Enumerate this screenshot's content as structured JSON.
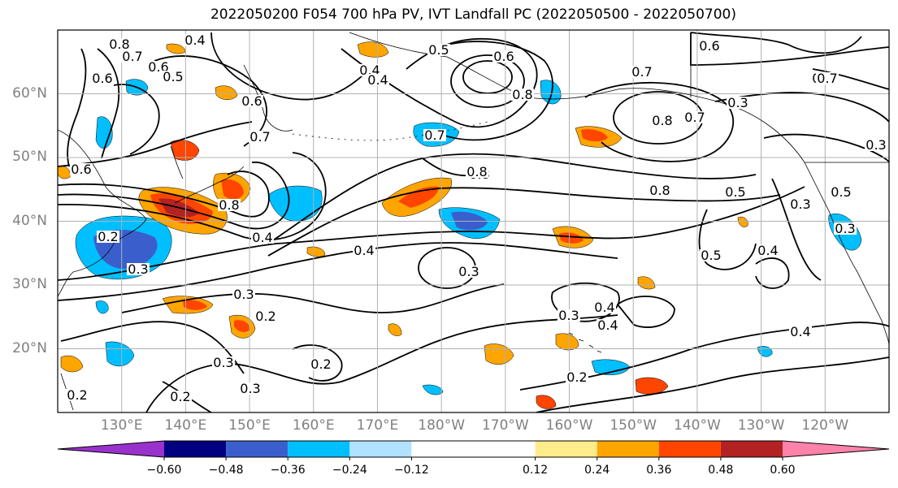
{
  "title": "2022050200 F054 700 hPa PV, IVT Landfall PC (2022050500 - 2022050700)",
  "map": {
    "projection": "PlateCarree",
    "lon_range": [
      120,
      250
    ],
    "lat_range": [
      10,
      70
    ],
    "grid_color": "#b0b0b0",
    "lat_labels": [
      "60°N",
      "50°N",
      "40°N",
      "30°N",
      "20°N"
    ],
    "lat_values": [
      60,
      50,
      40,
      30,
      20
    ],
    "lon_labels": [
      "130°E",
      "140°E",
      "150°E",
      "160°E",
      "170°E",
      "180°W",
      "170°W",
      "160°W",
      "150°W",
      "140°W",
      "130°W",
      "120°W"
    ],
    "lon_values": [
      130,
      140,
      150,
      160,
      170,
      180,
      190,
      200,
      210,
      220,
      230,
      240
    ],
    "contour_labels": [
      "0.8",
      "0.7",
      "0.6",
      "0.6",
      "0.4",
      "0.5",
      "0.6",
      "0.7",
      "0.8",
      "0.6",
      "0.4",
      "0.5",
      "0.7",
      "0.8",
      "0.8",
      "0.8",
      "0.5",
      "0.3",
      "0.4",
      "0.5",
      "0.4",
      "0.3",
      "0.3",
      "0.4",
      "0.2",
      "0.3",
      "0.3",
      "0.2",
      "0.3",
      "0.2",
      "0.2",
      "0.2",
      "0.3",
      "0.4",
      "0.4",
      "0.4",
      "0.6",
      "0.6",
      "0.7",
      "0.6",
      "0.7",
      "0.4",
      "0.3",
      "0.3",
      "0.5",
      "0.3",
      "0.8",
      "0.7",
      "0.8",
      "0.2"
    ]
  },
  "colorbar": {
    "colors": [
      "#9932cc",
      "#000080",
      "#3a5fcd",
      "#00bfff",
      "#b0e2ff",
      "#ffffff",
      "#ffec8b",
      "#ffa500",
      "#ff4500",
      "#b22222",
      "#ff82ab"
    ],
    "bounds": [
      -0.72,
      -0.6,
      -0.48,
      -0.36,
      -0.24,
      -0.12,
      0.12,
      0.24,
      0.36,
      0.48,
      0.6,
      0.72
    ],
    "tick_labels": [
      "−0.60",
      "−0.48",
      "−0.36",
      "−0.24",
      "−0.12",
      "0.12",
      "0.24",
      "0.36",
      "0.48",
      "0.60"
    ],
    "extend": "both"
  }
}
